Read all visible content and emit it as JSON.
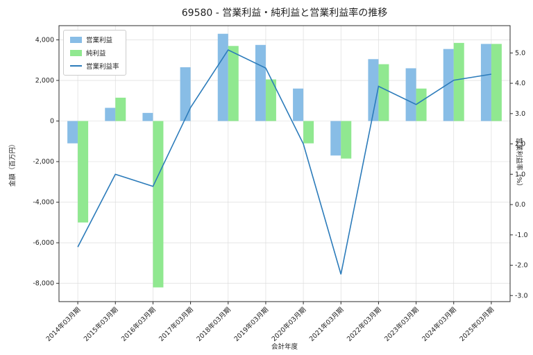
{
  "title": "69580 - 営業利益・純利益と営業利益率の推移",
  "chart_data": {
    "type": "bar",
    "subtype": "grouped-bars-with-line",
    "title": "69580 - 営業利益・純利益と営業利益率の推移",
    "xlabel": "会計年度",
    "ylabel_left": "金額（百万円）",
    "ylabel_right": "営業利益率（%）",
    "legend_position": "upper left",
    "grid": true,
    "categories": [
      "2014年03月期",
      "2015年03月期",
      "2016年03月期",
      "2017年03月期",
      "2018年03月期",
      "2019年03月期",
      "2020年03月期",
      "2021年03月期",
      "2022年03月期",
      "2023年03月期",
      "2024年03月期",
      "2025年03月期"
    ],
    "series": [
      {
        "name": "営業利益",
        "key": "operating-profit",
        "type": "bar",
        "axis": "left",
        "color": "#88bde6",
        "values": [
          -1100,
          650,
          400,
          2650,
          4300,
          3750,
          1600,
          -1700,
          3050,
          2600,
          3550,
          3800
        ]
      },
      {
        "name": "純利益",
        "key": "net-profit",
        "type": "bar",
        "axis": "left",
        "color": "#90e890",
        "values": [
          -5000,
          1150,
          -8200,
          0,
          3700,
          2050,
          -1100,
          -1850,
          2800,
          1600,
          3850,
          3800
        ]
      },
      {
        "name": "営業利益率",
        "key": "operating-margin",
        "type": "line",
        "axis": "right",
        "color": "#2b7bba",
        "values": [
          -1.4,
          1.0,
          0.6,
          3.2,
          5.1,
          4.5,
          2.0,
          -2.3,
          3.9,
          3.3,
          4.1,
          4.3
        ]
      }
    ],
    "left_axis": {
      "min": -8900,
      "max": 4700,
      "ticks": [
        {
          "value": 4000,
          "label": "4,000"
        },
        {
          "value": 2000,
          "label": "2,000"
        },
        {
          "value": 0,
          "label": "0"
        },
        {
          "value": -2000,
          "label": "-2,000"
        },
        {
          "value": -4000,
          "label": "-4,000"
        },
        {
          "value": -6000,
          "label": "-6,000"
        },
        {
          "value": -8000,
          "label": "-8,000"
        }
      ]
    },
    "right_axis": {
      "min": -3.2,
      "max": 5.9,
      "ticks": [
        {
          "value": 5.0,
          "label": "5.0"
        },
        {
          "value": 4.0,
          "label": "4.0"
        },
        {
          "value": 3.0,
          "label": "3.0"
        },
        {
          "value": 2.0,
          "label": "2.0"
        },
        {
          "value": 1.0,
          "label": "1.0"
        },
        {
          "value": 0.0,
          "label": "0.0"
        },
        {
          "value": -1.0,
          "label": "-1.0"
        },
        {
          "value": -2.0,
          "label": "-2.0"
        },
        {
          "value": -3.0,
          "label": "-3.0"
        }
      ]
    },
    "colors": {
      "grid": "#dddddd",
      "spine": "#2b2b2b",
      "text": "#1f1f1f",
      "background": "#ffffff"
    }
  }
}
